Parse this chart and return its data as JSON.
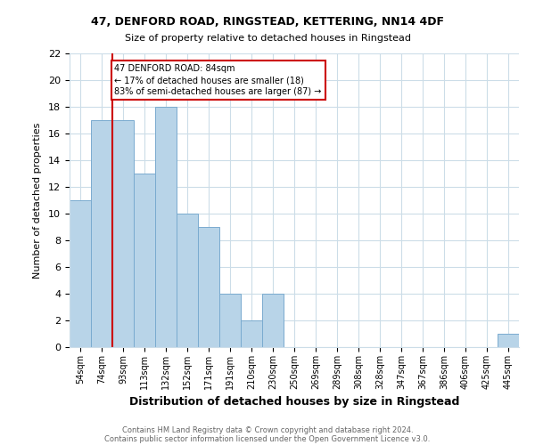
{
  "title1": "47, DENFORD ROAD, RINGSTEAD, KETTERING, NN14 4DF",
  "title2": "Size of property relative to detached houses in Ringstead",
  "xlabel": "Distribution of detached houses by size in Ringstead",
  "ylabel": "Number of detached properties",
  "bar_labels": [
    "54sqm",
    "74sqm",
    "93sqm",
    "113sqm",
    "132sqm",
    "152sqm",
    "171sqm",
    "191sqm",
    "210sqm",
    "230sqm",
    "250sqm",
    "269sqm",
    "289sqm",
    "308sqm",
    "328sqm",
    "347sqm",
    "367sqm",
    "386sqm",
    "406sqm",
    "425sqm",
    "445sqm"
  ],
  "bar_values": [
    11,
    17,
    17,
    13,
    18,
    10,
    9,
    4,
    2,
    4,
    0,
    0,
    0,
    0,
    0,
    0,
    0,
    0,
    0,
    0,
    1
  ],
  "bar_color": "#b8d4e8",
  "bar_edge_color": "#7aabcf",
  "reference_line_x": 1.5,
  "annotation_line1": "47 DENFORD ROAD: 84sqm",
  "annotation_line2": "← 17% of detached houses are smaller (18)",
  "annotation_line3": "83% of semi-detached houses are larger (87) →",
  "annotation_box_edge": "#cc0000",
  "reference_line_color": "#cc0000",
  "ylim": [
    0,
    22
  ],
  "yticks": [
    0,
    2,
    4,
    6,
    8,
    10,
    12,
    14,
    16,
    18,
    20,
    22
  ],
  "footer1": "Contains HM Land Registry data © Crown copyright and database right 2024.",
  "footer2": "Contains public sector information licensed under the Open Government Licence v3.0.",
  "bg_color": "#ffffff",
  "grid_color": "#ccdde8"
}
